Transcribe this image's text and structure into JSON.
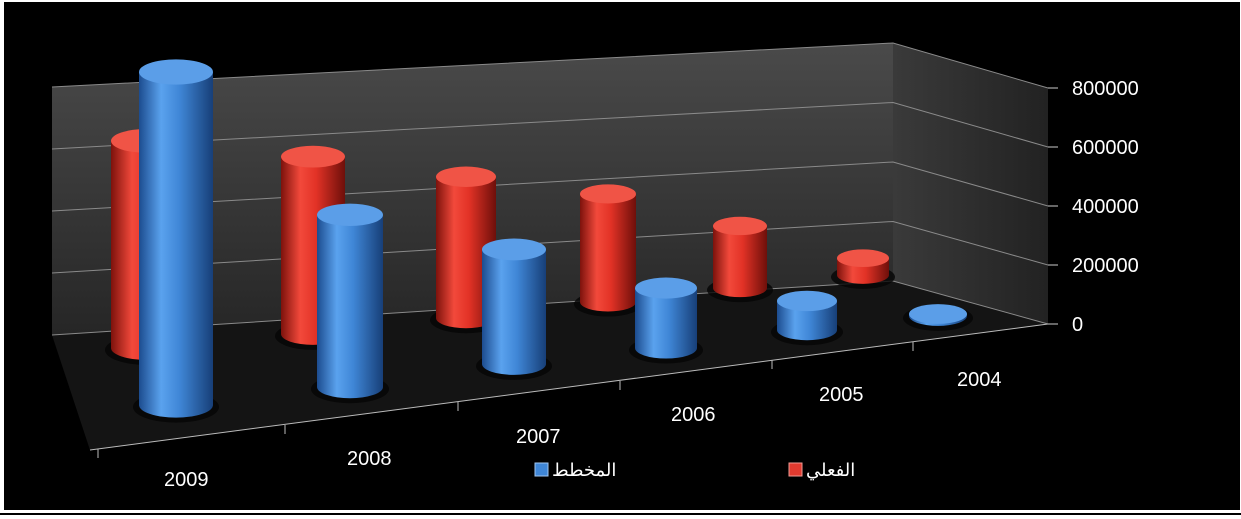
{
  "chart_data": {
    "type": "bar",
    "style": "3d-cylinder",
    "categories": [
      "2009",
      "2008",
      "2007",
      "2006",
      "2005",
      "2004"
    ],
    "series": [
      {
        "name": "الفعلي",
        "color": "#e03a2f",
        "values": [
          720000,
          640000,
          530000,
          420000,
          250000,
          70000
        ]
      },
      {
        "name": "المخطط",
        "color": "#3f86d6",
        "values": [
          720000,
          380000,
          260000,
          140000,
          70000,
          2000
        ]
      }
    ],
    "yticks": [
      "800000",
      "600000",
      "400000",
      "200000",
      "0"
    ],
    "ylim": [
      0,
      800000
    ],
    "grid": true,
    "legend_position": "bottom",
    "background": "#000000"
  }
}
